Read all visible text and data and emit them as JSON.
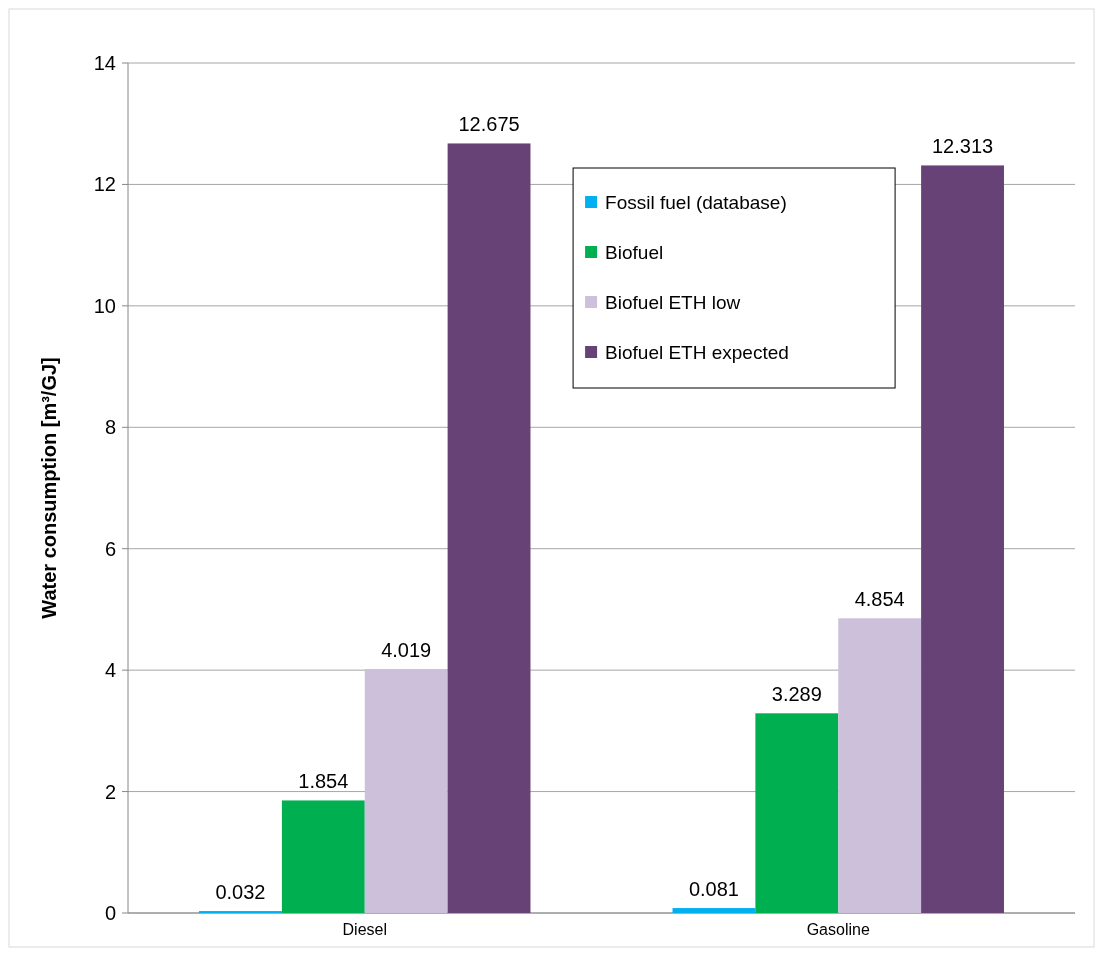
{
  "chart_data": {
    "type": "bar",
    "ylabel": "Water consumption [m³/GJ]",
    "categories": [
      "Diesel",
      "Gasoline"
    ],
    "series": [
      {
        "name": "Fossil fuel (database)",
        "color": "#00b0f0",
        "values": [
          0.032,
          0.081
        ]
      },
      {
        "name": "Biofuel",
        "color": "#00b050",
        "values": [
          1.854,
          3.289
        ]
      },
      {
        "name": "Biofuel ETH low",
        "color": "#ccc0da",
        "values": [
          4.019,
          4.854
        ]
      },
      {
        "name": "Biofuel ETH expected",
        "color": "#674276",
        "values": [
          12.675,
          12.313
        ]
      }
    ],
    "ylim": [
      0,
      14
    ],
    "yticks": [
      0,
      2,
      4,
      6,
      8,
      10,
      12,
      14
    ],
    "grid": "y",
    "legend": "top right",
    "data_labels": true
  }
}
